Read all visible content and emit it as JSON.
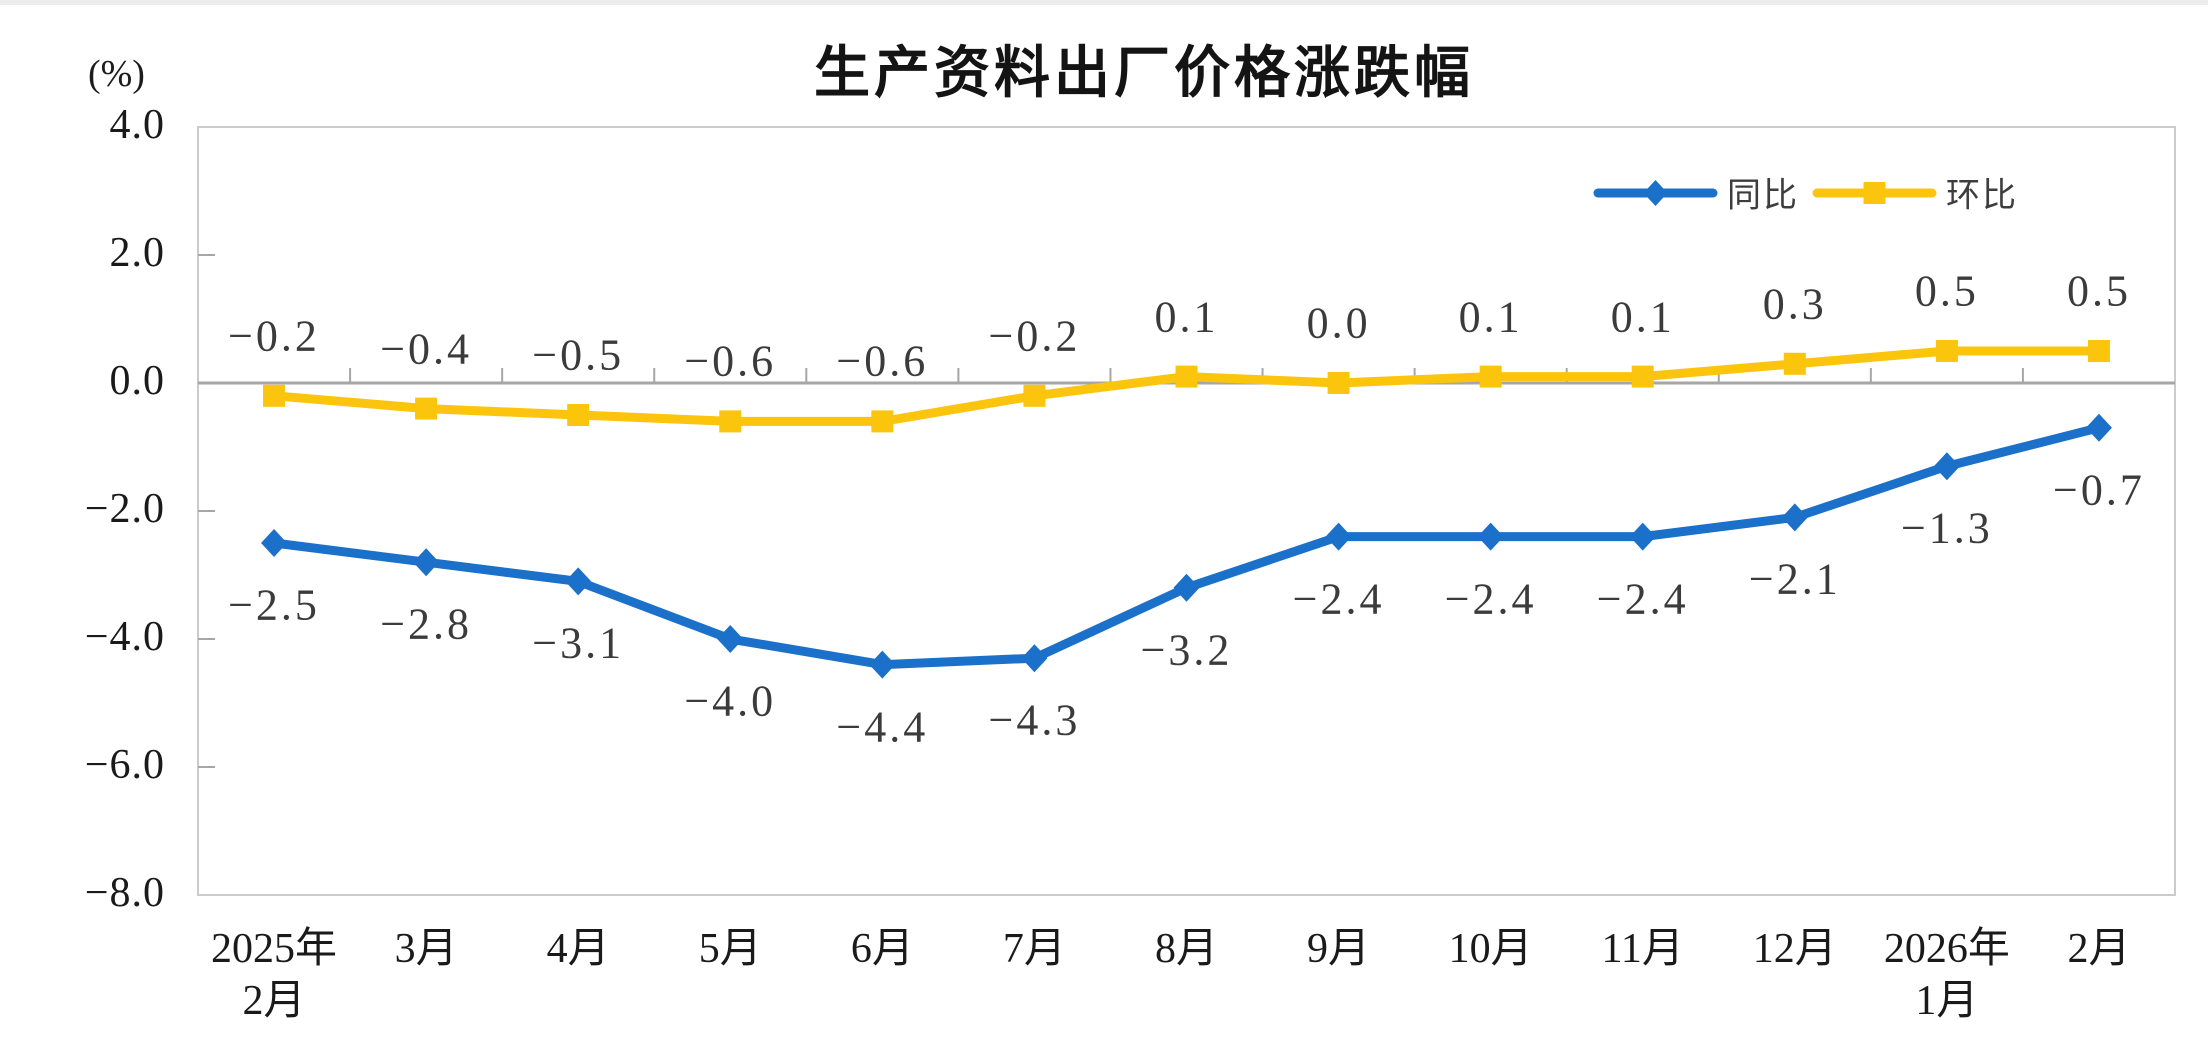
{
  "title": "生产资料出厂价格涨跌幅",
  "y_axis_unit": "(%)",
  "legend": {
    "items": [
      {
        "label": "同比",
        "marker": "diamond",
        "color": "#1B70C9"
      },
      {
        "label": "环比",
        "marker": "square",
        "color": "#FBC40D"
      }
    ],
    "position": "top-right"
  },
  "colors": {
    "series_yoy": "#1B70C9",
    "series_mom": "#FBC40D",
    "zero_axis": "#A6A6A6",
    "plot_border": "#CBCBCB",
    "tick": "#A6A6A6",
    "axis_text": "#1a1a1a",
    "data_label_text": "#3b3b3b",
    "title_text": "#141414"
  },
  "chart_data": {
    "type": "line",
    "title": "生产资料出厂价格涨跌幅",
    "ylabel": "(%)",
    "xlabel": "",
    "ylim": [
      -8.0,
      4.0
    ],
    "y_tick_interval": 2.0,
    "grid": false,
    "zero_line": true,
    "legend_position": "top-right",
    "categories": [
      "2025年2月",
      "3月",
      "4月",
      "5月",
      "6月",
      "7月",
      "8月",
      "9月",
      "10月",
      "11月",
      "12月",
      "2026年1月",
      "2月"
    ],
    "x_tick_lines": [
      [
        "2025年",
        "2月"
      ],
      [
        "3月"
      ],
      [
        "4月"
      ],
      [
        "5月"
      ],
      [
        "6月"
      ],
      [
        "7月"
      ],
      [
        "8月"
      ],
      [
        "9月"
      ],
      [
        "10月"
      ],
      [
        "11月"
      ],
      [
        "12月"
      ],
      [
        "2026年",
        "1月"
      ],
      [
        "2月"
      ]
    ],
    "y_ticks": [
      {
        "label": "4.0",
        "value": 4.0
      },
      {
        "label": "2.0",
        "value": 2.0
      },
      {
        "label": "0.0",
        "value": 0.0
      },
      {
        "label": "−2.0",
        "value": -2.0
      },
      {
        "label": "−4.0",
        "value": -4.0
      },
      {
        "label": "−6.0",
        "value": -6.0
      },
      {
        "label": "−8.0",
        "value": -8.0
      }
    ],
    "series": [
      {
        "name": "同比",
        "color": "#1B70C9",
        "marker": "diamond",
        "label_position": "below",
        "values": [
          -2.5,
          -2.8,
          -3.1,
          -4.0,
          -4.4,
          -4.3,
          -3.2,
          -2.4,
          -2.4,
          -2.4,
          -2.1,
          -1.3,
          -0.7
        ],
        "labels": [
          "−2.5",
          "−2.8",
          "−3.1",
          "−4.0",
          "−4.4",
          "−4.3",
          "−3.2",
          "−2.4",
          "−2.4",
          "−2.4",
          "−2.1",
          "−1.3",
          "−0.7"
        ]
      },
      {
        "name": "环比",
        "color": "#FBC40D",
        "marker": "square",
        "label_position": "above",
        "values": [
          -0.2,
          -0.4,
          -0.5,
          -0.6,
          -0.6,
          -0.2,
          0.1,
          0.0,
          0.1,
          0.1,
          0.3,
          0.5,
          0.5
        ],
        "labels": [
          "−0.2",
          "−0.4",
          "−0.5",
          "−0.6",
          "−0.6",
          "−0.2",
          "0.1",
          "0.0",
          "0.1",
          "0.1",
          "0.3",
          "0.5",
          "0.5"
        ]
      }
    ]
  }
}
